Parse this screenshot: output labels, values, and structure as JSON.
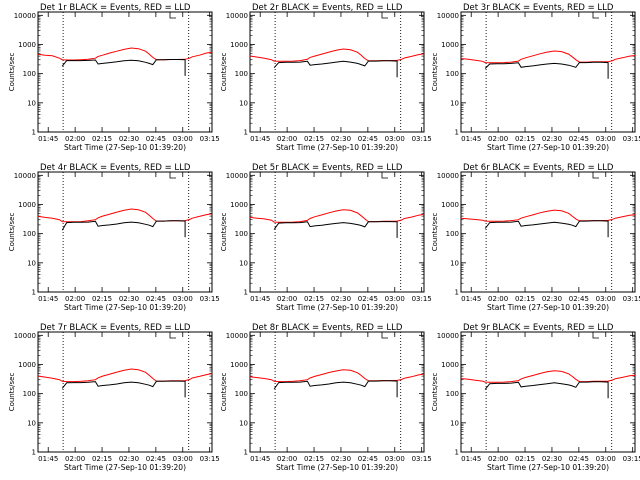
{
  "chart_data": {
    "type": "line",
    "grid_layout": "3x3",
    "y_scale": "log",
    "ylim": [
      1,
      13000
    ],
    "y_ticks": [
      1,
      10,
      100,
      1000,
      10000
    ],
    "x_range_minutes": [
      0,
      97
    ],
    "x_ticks": [
      {
        "label": "01:45",
        "minute": 5.7
      },
      {
        "label": "02:00",
        "minute": 20.7
      },
      {
        "label": "02:15",
        "minute": 35.7
      },
      {
        "label": "02:30",
        "minute": 50.7
      },
      {
        "label": "02:45",
        "minute": 65.7
      },
      {
        "label": "03:00",
        "minute": 80.7
      },
      {
        "label": "03:15",
        "minute": 95.7
      }
    ],
    "vertical_markers_minutes": [
      14,
      84
    ],
    "ylabel": "Counts/sec",
    "xlabel": "Start Time (27-Sep-10 01:39:20)",
    "series": [
      {
        "name": "Events",
        "color": "#000000",
        "description": "BLACK"
      },
      {
        "name": "LLD",
        "color": "#ff0000",
        "description": "RED"
      }
    ],
    "x_samples": [
      0,
      4,
      8,
      12,
      13.5,
      16,
      20,
      24,
      28,
      32,
      33.5,
      36,
      40,
      44,
      48,
      52,
      56,
      60,
      62,
      64,
      66,
      70,
      74,
      78,
      82,
      84.5,
      86,
      90,
      94,
      97
    ],
    "panels": [
      {
        "title": "Det 1r BLACK = Events, RED = LLD",
        "red": [
          460,
          430,
          410,
          340,
          300,
          295,
          295,
          300,
          310,
          340,
          390,
          430,
          510,
          590,
          680,
          760,
          720,
          590,
          470,
          360,
          300,
          300,
          305,
          305,
          310,
          340,
          380,
          430,
          510,
          540
        ],
        "black": [
          null,
          null,
          null,
          null,
          180,
          280,
          280,
          280,
          285,
          295,
          215,
          225,
          240,
          255,
          275,
          290,
          275,
          245,
          225,
          205,
          300,
          300,
          305,
          305,
          300,
          null,
          null,
          null,
          null,
          null
        ]
      },
      {
        "title": "Det 2r BLACK = Events, RED = LLD",
        "red": [
          400,
          370,
          340,
          300,
          270,
          265,
          265,
          270,
          280,
          310,
          360,
          400,
          470,
          550,
          630,
          700,
          660,
          540,
          430,
          330,
          275,
          275,
          280,
          280,
          285,
          310,
          345,
          390,
          450,
          480
        ],
        "black": [
          null,
          null,
          null,
          null,
          160,
          240,
          245,
          245,
          250,
          265,
          195,
          205,
          215,
          230,
          250,
          265,
          250,
          225,
          205,
          185,
          270,
          270,
          275,
          275,
          270,
          null,
          null,
          null,
          null,
          null
        ]
      },
      {
        "title": "Det 3r BLACK = Events, RED = LLD",
        "red": [
          330,
          310,
          290,
          265,
          240,
          235,
          235,
          240,
          250,
          270,
          310,
          350,
          410,
          480,
          550,
          600,
          570,
          470,
          380,
          300,
          250,
          250,
          255,
          255,
          255,
          280,
          310,
          350,
          400,
          420
        ],
        "black": [
          null,
          null,
          null,
          null,
          150,
          215,
          220,
          220,
          225,
          235,
          165,
          175,
          185,
          200,
          215,
          225,
          215,
          195,
          180,
          165,
          240,
          240,
          245,
          245,
          240,
          null,
          null,
          null,
          null,
          null
        ]
      },
      {
        "title": "Det 4r BLACK = Events, RED = LLD",
        "red": [
          390,
          360,
          340,
          300,
          260,
          255,
          255,
          260,
          275,
          300,
          350,
          400,
          470,
          550,
          630,
          700,
          660,
          540,
          430,
          330,
          270,
          270,
          275,
          275,
          280,
          305,
          340,
          390,
          450,
          480
        ],
        "black": [
          null,
          null,
          null,
          null,
          130,
          240,
          245,
          245,
          250,
          265,
          180,
          190,
          200,
          215,
          235,
          250,
          235,
          210,
          195,
          175,
          270,
          270,
          275,
          275,
          270,
          null,
          null,
          null,
          null,
          null
        ]
      },
      {
        "title": "Det 5r BLACK = Events, RED = LLD",
        "red": [
          360,
          340,
          320,
          290,
          250,
          245,
          245,
          250,
          260,
          285,
          330,
          380,
          440,
          520,
          600,
          660,
          630,
          510,
          410,
          320,
          260,
          260,
          265,
          265,
          270,
          295,
          330,
          370,
          430,
          460
        ],
        "black": [
          null,
          null,
          null,
          null,
          140,
          230,
          235,
          235,
          240,
          255,
          175,
          185,
          195,
          210,
          225,
          240,
          225,
          205,
          190,
          170,
          255,
          255,
          260,
          260,
          255,
          null,
          null,
          null,
          null,
          null
        ]
      },
      {
        "title": "Det 6r BLACK = Events, RED = LLD",
        "red": [
          340,
          320,
          305,
          290,
          270,
          265,
          265,
          270,
          280,
          300,
          340,
          380,
          440,
          520,
          590,
          640,
          610,
          500,
          400,
          320,
          275,
          275,
          280,
          280,
          285,
          310,
          340,
          380,
          430,
          450
        ],
        "black": [
          null,
          null,
          null,
          null,
          150,
          240,
          245,
          245,
          250,
          265,
          180,
          190,
          200,
          215,
          230,
          245,
          230,
          210,
          195,
          175,
          270,
          270,
          275,
          275,
          270,
          null,
          null,
          null,
          null,
          null
        ]
      },
      {
        "title": "Det 7r BLACK = Events, RED = LLD",
        "red": [
          400,
          370,
          340,
          300,
          265,
          260,
          260,
          265,
          275,
          300,
          350,
          400,
          470,
          550,
          630,
          700,
          660,
          540,
          430,
          330,
          270,
          270,
          275,
          275,
          280,
          305,
          345,
          390,
          450,
          490
        ],
        "black": [
          null,
          null,
          null,
          null,
          150,
          235,
          240,
          240,
          245,
          260,
          180,
          190,
          200,
          215,
          235,
          250,
          235,
          210,
          195,
          175,
          265,
          265,
          270,
          270,
          265,
          null,
          null,
          null,
          null,
          null
        ]
      },
      {
        "title": "Det 8r BLACK = Events, RED = LLD",
        "red": [
          380,
          355,
          330,
          300,
          265,
          260,
          260,
          265,
          275,
          300,
          345,
          390,
          455,
          530,
          600,
          660,
          630,
          520,
          420,
          330,
          275,
          275,
          280,
          280,
          285,
          305,
          340,
          380,
          440,
          470
        ],
        "black": [
          null,
          null,
          null,
          null,
          145,
          240,
          245,
          245,
          250,
          265,
          180,
          190,
          200,
          215,
          235,
          250,
          235,
          210,
          195,
          175,
          270,
          270,
          275,
          275,
          270,
          null,
          null,
          null,
          null,
          null
        ]
      },
      {
        "title": "Det 9r BLACK = Events, RED = LLD",
        "red": [
          330,
          310,
          290,
          270,
          250,
          245,
          245,
          250,
          260,
          280,
          320,
          360,
          420,
          490,
          560,
          610,
          580,
          480,
          390,
          310,
          260,
          260,
          265,
          265,
          270,
          295,
          325,
          360,
          410,
          430
        ],
        "black": [
          null,
          null,
          null,
          null,
          140,
          220,
          225,
          225,
          230,
          245,
          170,
          180,
          190,
          205,
          220,
          235,
          220,
          200,
          185,
          165,
          250,
          250,
          255,
          255,
          250,
          null,
          null,
          null,
          null,
          null
        ]
      }
    ]
  }
}
